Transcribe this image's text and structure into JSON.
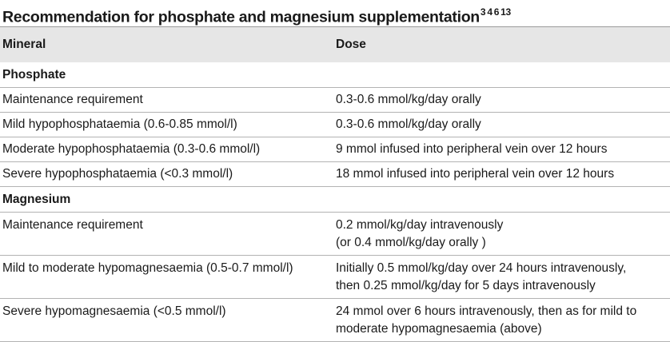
{
  "title": {
    "text": "Recommendation for phosphate and magnesium supplementation",
    "refs": "3 4 6 13"
  },
  "columns": [
    "Mineral",
    "Dose"
  ],
  "sections": [
    {
      "name": "Phosphate",
      "rows": [
        {
          "mineral": "Maintenance requirement",
          "dose": [
            "0.3-0.6 mmol/kg/day orally"
          ]
        },
        {
          "mineral": "Mild hypophosphataemia (0.6-0.85 mmol/l)",
          "dose": [
            "0.3-0.6 mmol/kg/day orally"
          ]
        },
        {
          "mineral": "Moderate hypophosphataemia (0.3-0.6 mmol/l)",
          "dose": [
            "9 mmol infused into peripheral vein over 12 hours"
          ]
        },
        {
          "mineral": "Severe hypophosphataemia (<0.3 mmol/l)",
          "dose": [
            "18 mmol infused into peripheral vein over 12 hours"
          ]
        }
      ]
    },
    {
      "name": "Magnesium",
      "rows": [
        {
          "mineral": "Maintenance requirement",
          "dose": [
            "0.2 mmol/kg/day intravenously",
            "(or 0.4 mmol/kg/day orally )"
          ]
        },
        {
          "mineral": "Mild to moderate hypomagnesaemia (0.5-0.7 mmol/l)",
          "dose": [
            "Initially 0.5 mmol/kg/day over 24 hours intravenously,",
            "then 0.25 mmol/kg/day for 5 days intravenously"
          ]
        },
        {
          "mineral": "Severe hypomagnesaemia (<0.5 mmol/l)",
          "dose": [
            "24 mmol over 6 hours intravenously, then as for mild to",
            "moderate hypomagnesaemia (above)"
          ]
        }
      ]
    }
  ]
}
